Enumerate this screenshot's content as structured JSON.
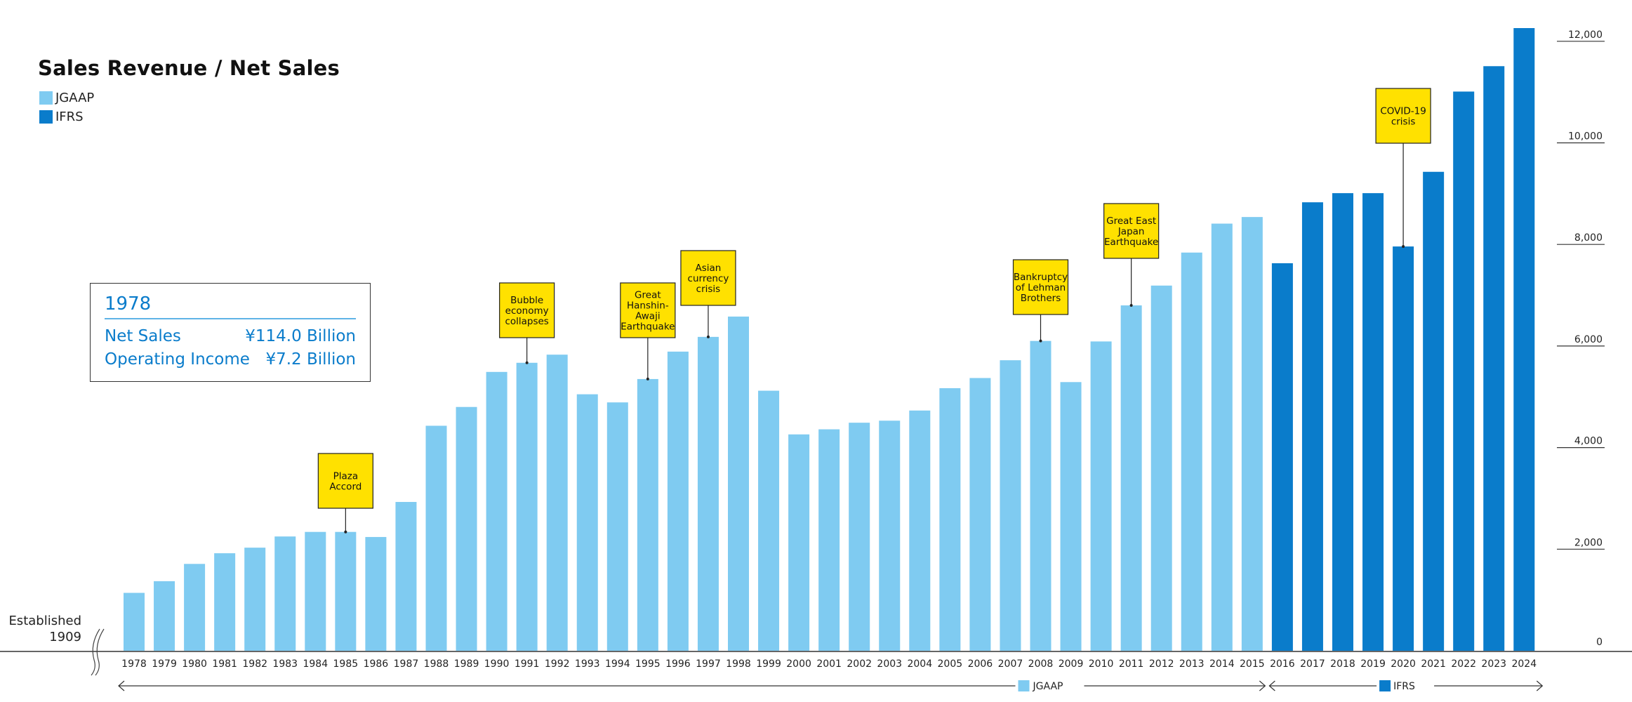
{
  "chart_data": {
    "type": "bar",
    "title": "Sales Revenue / Net Sales",
    "legend": [
      {
        "name": "JGAAP",
        "color": "#7fcbf1"
      },
      {
        "name": "IFRS",
        "color": "#0a7ccb"
      }
    ],
    "categories": [
      "1978",
      "1979",
      "1980",
      "1981",
      "1982",
      "1983",
      "1984",
      "1985",
      "1986",
      "1987",
      "1988",
      "1989",
      "1990",
      "1991",
      "1992",
      "1993",
      "1994",
      "1995",
      "1996",
      "1997",
      "1998",
      "1999",
      "2000",
      "2001",
      "2002",
      "2003",
      "2004",
      "2005",
      "2006",
      "2007",
      "2008",
      "2009",
      "2010",
      "2011",
      "2012",
      "2013",
      "2014",
      "2015",
      "2016",
      "2017",
      "2018",
      "2019",
      "2020",
      "2021",
      "2022",
      "2023",
      "2024"
    ],
    "series": [
      {
        "name": "JGAAP",
        "color": "#7fcbf1",
        "x": [
          "1978",
          "1979",
          "1980",
          "1981",
          "1982",
          "1983",
          "1984",
          "1985",
          "1986",
          "1987",
          "1988",
          "1989",
          "1990",
          "1991",
          "1992",
          "1993",
          "1994",
          "1995",
          "1996",
          "1997",
          "1998",
          "1999",
          "2000",
          "2001",
          "2002",
          "2003",
          "2004",
          "2005",
          "2006",
          "2007",
          "2008",
          "2009",
          "2010",
          "2011",
          "2012",
          "2013",
          "2014",
          "2015"
        ],
        "values": [
          1140,
          1370,
          1710,
          1920,
          2030,
          2250,
          2340,
          2340,
          2240,
          2930,
          4430,
          4800,
          5490,
          5670,
          5830,
          5050,
          4890,
          5350,
          5890,
          6180,
          6580,
          5120,
          4260,
          4360,
          4490,
          4530,
          4730,
          5170,
          5370,
          5720,
          6100,
          5290,
          6090,
          6800,
          7190,
          7840,
          8410,
          8540
        ]
      },
      {
        "name": "IFRS",
        "color": "#0a7ccb",
        "x": [
          "2016",
          "2017",
          "2018",
          "2019",
          "2020",
          "2021",
          "2022",
          "2023",
          "2024"
        ],
        "values": [
          7630,
          8830,
          9010,
          9010,
          7960,
          9430,
          11010,
          11510,
          12260
        ]
      }
    ],
    "yticks": [
      "0",
      "2,000",
      "4,000",
      "6,000",
      "8,000",
      "10,000",
      "12,000"
    ],
    "ylim": [
      0,
      12260
    ],
    "annotations": [
      {
        "year": "1985",
        "lines": [
          "Plaza",
          "Accord"
        ]
      },
      {
        "year": "1991",
        "lines": [
          "Bubble",
          "economy",
          "collapses"
        ]
      },
      {
        "year": "1995",
        "lines": [
          "Great",
          "Hanshin-",
          "Awaji",
          "Earthquake"
        ]
      },
      {
        "year": "1997",
        "lines": [
          "Asian",
          "currency",
          "crisis"
        ]
      },
      {
        "year": "2008",
        "lines": [
          "Bankruptcy",
          "of Lehman",
          "Brothers"
        ]
      },
      {
        "year": "2011",
        "lines": [
          "Great East",
          "Japan",
          "Earthquake"
        ]
      },
      {
        "year": "2020",
        "lines": [
          "COVID-19",
          "crisis"
        ]
      }
    ],
    "periods": [
      {
        "label": "JGAAP",
        "from": "1978",
        "to": "2015"
      },
      {
        "label": "IFRS",
        "from": "2016",
        "to": "2024"
      }
    ],
    "annotation_color": "#ffe100"
  },
  "infobox": {
    "year": "1978",
    "net_sales_label": "Net Sales",
    "net_sales_value": "¥114.0 Billion",
    "operating_income_label": "Operating Income",
    "operating_income_value": "¥7.2 Billion"
  },
  "established": {
    "label": "Established",
    "year": "1909"
  }
}
